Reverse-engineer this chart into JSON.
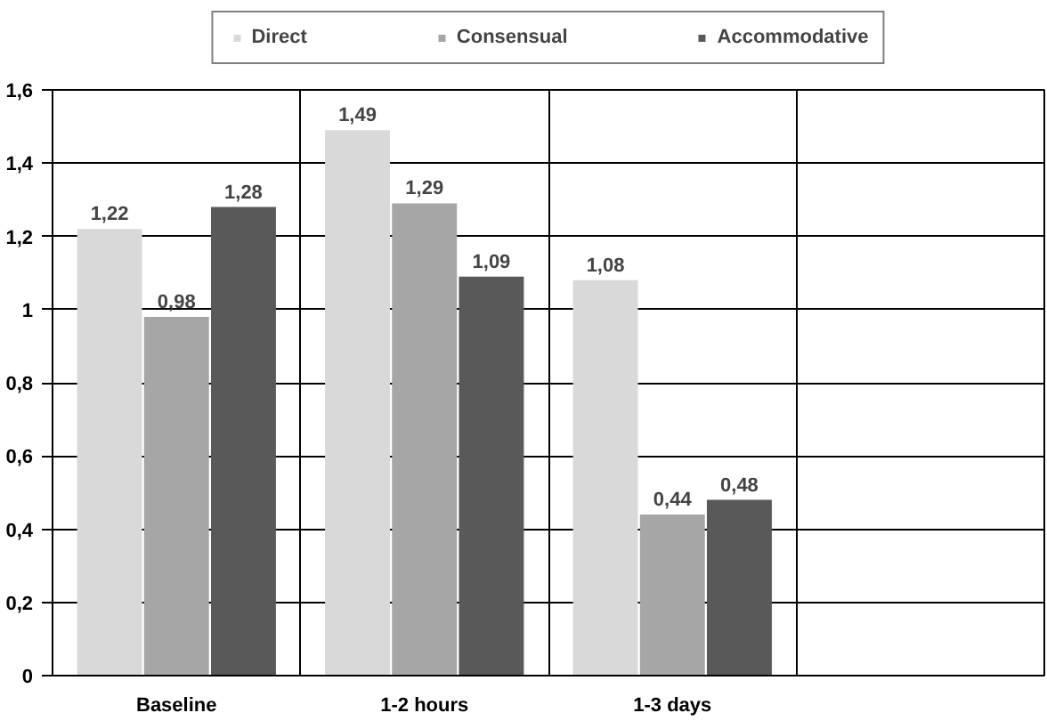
{
  "chart_data": {
    "type": "bar",
    "categories": [
      "Baseline",
      "1-2 hours",
      "1-3 days",
      null
    ],
    "series": [
      {
        "name": "Direct",
        "color": "#d9d9d9",
        "values": [
          1.22,
          1.49,
          1.08,
          null
        ],
        "value_labels": [
          "1,22",
          "1,49",
          "1,08",
          null
        ]
      },
      {
        "name": "Consensual",
        "color": "#a6a6a6",
        "values": [
          0.98,
          1.29,
          0.44,
          null
        ],
        "value_labels": [
          "0,98",
          "1,29",
          "0,44",
          null
        ]
      },
      {
        "name": "Accommodative",
        "color": "#595959",
        "values": [
          1.28,
          1.09,
          0.48,
          null
        ],
        "value_labels": [
          "1,28",
          "1,09",
          "0,48",
          null
        ]
      }
    ],
    "ylim": [
      0,
      1.6
    ],
    "yticks": [
      0,
      {
        "value": 0.2,
        "label": "0,2"
      },
      {
        "value": 0.4,
        "label": "0,4"
      },
      {
        "value": 0.6,
        "label": "0,6"
      },
      {
        "value": 0.8,
        "label": "0,8"
      },
      1,
      {
        "value": 1.2,
        "label": "1,2"
      },
      {
        "value": 1.4,
        "label": "1,4"
      },
      {
        "value": 1.6,
        "label": "1,6"
      }
    ],
    "grid": true,
    "legend": "top"
  }
}
